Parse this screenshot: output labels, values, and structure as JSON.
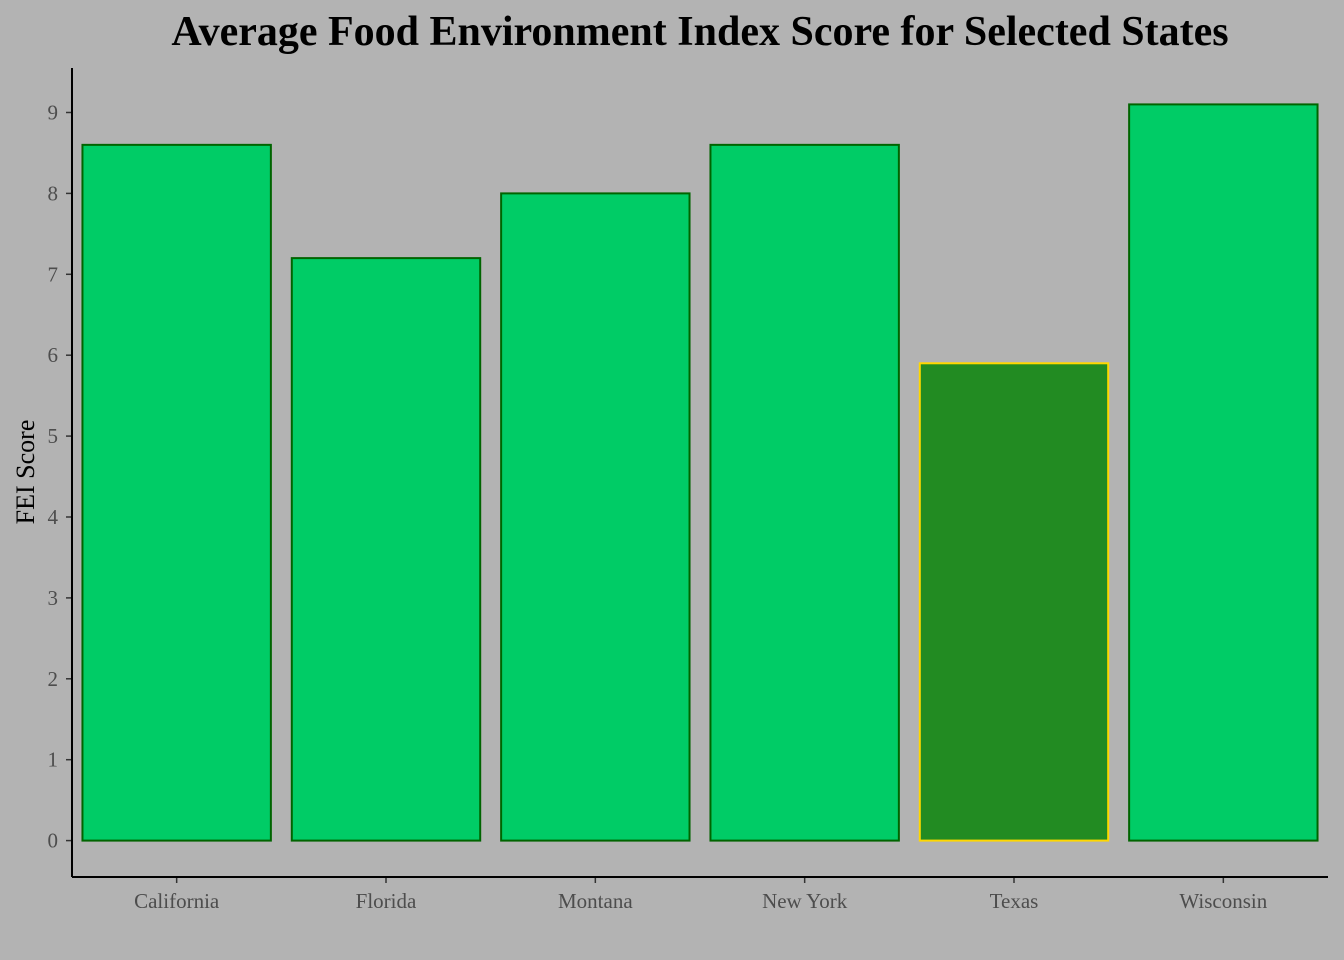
{
  "chart_data": {
    "type": "bar",
    "title": "Average Food Environment Index Score for Selected States",
    "xlabel": "",
    "ylabel": "FEI Score",
    "categories": [
      "California",
      "Florida",
      "Montana",
      "New York",
      "Texas",
      "Wisconsin"
    ],
    "values": [
      8.6,
      7.2,
      8.0,
      8.6,
      5.9,
      9.1
    ],
    "yticks": [
      "0",
      "1",
      "2",
      "3",
      "4",
      "5",
      "6",
      "7",
      "8",
      "9"
    ],
    "ylim": [
      -0.45,
      9.55
    ],
    "grid": false,
    "legend": "none",
    "highlight_category": "Texas",
    "colors": {
      "background": "#b3b3b3",
      "bar_fill": "#00cc66",
      "bar_outline": "#006400",
      "highlight_fill": "#228b22",
      "highlight_outline": "#ffd700"
    }
  }
}
